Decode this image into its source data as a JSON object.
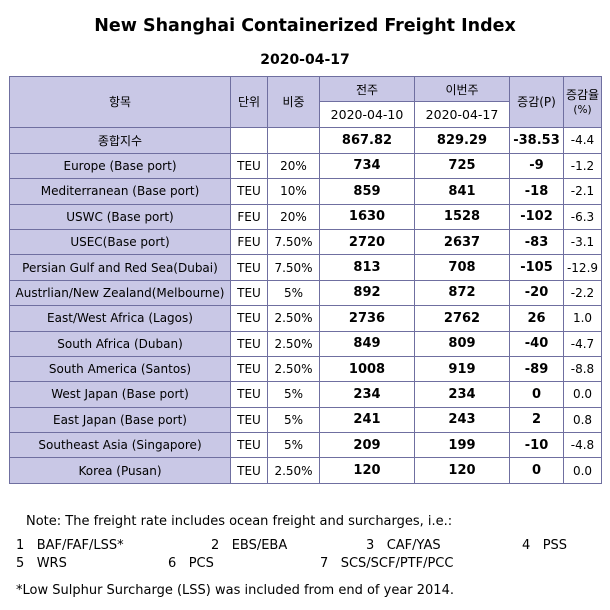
{
  "title": "New Shanghai Containerized Freight Index",
  "date": "2020-04-17",
  "headers": {
    "item": "항목",
    "unit": "단위",
    "weight": "비중",
    "prev_week": "전주",
    "this_week": "이번주",
    "change": "증감(P)",
    "change_rate_line1": "증감율",
    "change_rate_line2": "(%)",
    "prev_date": "2020-04-10",
    "this_date": "2020-04-17"
  },
  "composite": {
    "label": "종합지수",
    "prev": "867.82",
    "curr": "829.29",
    "change": "-38.53",
    "rate": "-4.4"
  },
  "rows": [
    {
      "route": "Europe (Base port)",
      "unit": "TEU",
      "weight": "20%",
      "prev": "734",
      "curr": "725",
      "change": "-9",
      "rate": "-1.2"
    },
    {
      "route": "Mediterranean (Base port)",
      "unit": "TEU",
      "weight": "10%",
      "prev": "859",
      "curr": "841",
      "change": "-18",
      "rate": "-2.1"
    },
    {
      "route": "USWC (Base port)",
      "unit": "FEU",
      "weight": "20%",
      "prev": "1630",
      "curr": "1528",
      "change": "-102",
      "rate": "-6.3"
    },
    {
      "route": "USEC(Base port)",
      "unit": "FEU",
      "weight": "7.50%",
      "prev": "2720",
      "curr": "2637",
      "change": "-83",
      "rate": "-3.1"
    },
    {
      "route": "Persian Gulf and Red Sea(Dubai)",
      "unit": "TEU",
      "weight": "7.50%",
      "prev": "813",
      "curr": "708",
      "change": "-105",
      "rate": "-12.9"
    },
    {
      "route": "Austrlian/New Zealand(Melbourne)",
      "unit": "TEU",
      "weight": "5%",
      "prev": "892",
      "curr": "872",
      "change": "-20",
      "rate": "-2.2"
    },
    {
      "route": "East/West Africa (Lagos)",
      "unit": "TEU",
      "weight": "2.50%",
      "prev": "2736",
      "curr": "2762",
      "change": "26",
      "rate": "1.0"
    },
    {
      "route": "South Africa (Duban)",
      "unit": "TEU",
      "weight": "2.50%",
      "prev": "849",
      "curr": "809",
      "change": "-40",
      "rate": "-4.7"
    },
    {
      "route": "South America (Santos)",
      "unit": "TEU",
      "weight": "2.50%",
      "prev": "1008",
      "curr": "919",
      "change": "-89",
      "rate": "-8.8"
    },
    {
      "route": "West Japan (Base port)",
      "unit": "TEU",
      "weight": "5%",
      "prev": "234",
      "curr": "234",
      "change": "0",
      "rate": "0.0"
    },
    {
      "route": "East Japan (Base port)",
      "unit": "TEU",
      "weight": "5%",
      "prev": "241",
      "curr": "243",
      "change": "2",
      "rate": "0.8"
    },
    {
      "route": "Southeast Asia (Singapore)",
      "unit": "TEU",
      "weight": "5%",
      "prev": "209",
      "curr": "199",
      "change": "-10",
      "rate": "-4.8"
    },
    {
      "route": "Korea (Pusan)",
      "unit": "TEU",
      "weight": "2.50%",
      "prev": "120",
      "curr": "120",
      "change": "0",
      "rate": "0.0"
    }
  ],
  "note": "Note: The freight rate includes ocean freight and surcharges, i.e.:",
  "surcharges": [
    {
      "num": "1",
      "label": "BAF/FAF/LSS*"
    },
    {
      "num": "2",
      "label": "EBS/EBA"
    },
    {
      "num": "3",
      "label": "CAF/YAS"
    },
    {
      "num": "4",
      "label": "PSS"
    },
    {
      "num": "5",
      "label": "WRS"
    },
    {
      "num": "6",
      "label": "PCS"
    },
    {
      "num": "7",
      "label": "SCS/SCF/PTF/PCC"
    }
  ],
  "footnote": "*Low Sulphur Surcharge (LSS) was included from end of year 2014."
}
